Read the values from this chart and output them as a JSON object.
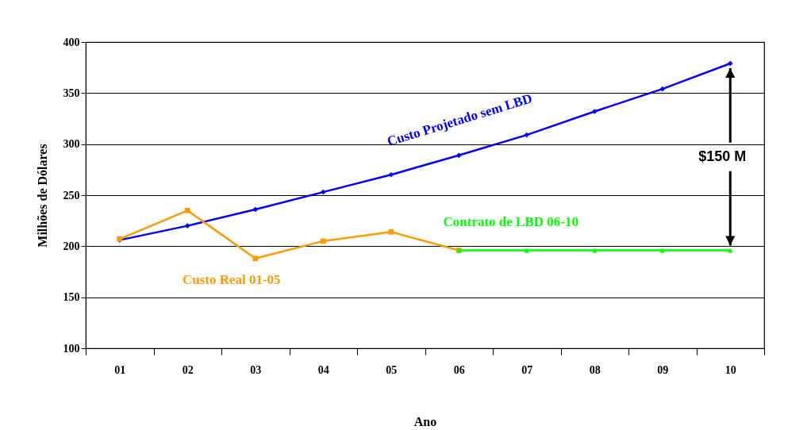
{
  "chart_data": {
    "type": "line",
    "xlabel": "Ano",
    "ylabel": "Milhões de Dólares",
    "categories": [
      "01",
      "02",
      "03",
      "04",
      "05",
      "06",
      "07",
      "08",
      "09",
      "10"
    ],
    "series": [
      {
        "name": "Custo Projetado sem LBD",
        "color": "#0000ff",
        "marker": "diamond",
        "values": [
          206,
          220,
          236,
          253,
          270,
          289,
          309,
          332,
          354,
          379
        ]
      },
      {
        "name": "Custo Real 01-05",
        "color": "#ff9900",
        "marker": "square",
        "values": [
          207,
          235,
          188,
          205,
          214,
          196,
          null,
          null,
          null,
          null
        ]
      },
      {
        "name": "Contrato de LBD 06-10",
        "color": "#00ff00",
        "marker": "triangle",
        "values": [
          null,
          null,
          null,
          null,
          null,
          196,
          196,
          196,
          196,
          196
        ]
      }
    ],
    "ylim": [
      100,
      400
    ],
    "yticks": [
      100,
      150,
      200,
      250,
      300,
      350,
      400
    ],
    "grid": "y",
    "line_style": "solid",
    "annotations": [
      {
        "text": "$150 M",
        "x": "10",
        "y": 379
      }
    ]
  }
}
